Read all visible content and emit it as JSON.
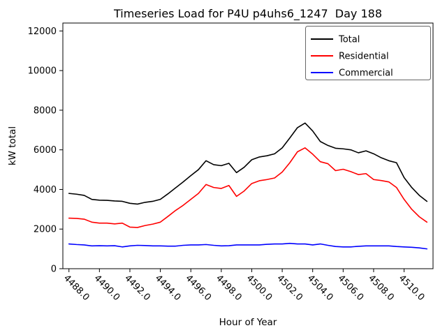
{
  "title": "Timeseries Load for P4U p4uhs6_1247  Day 188",
  "axes": {
    "xlabel": "Hour of Year",
    "ylabel": "kW total"
  },
  "legend": {
    "position": "upper right",
    "items": [
      {
        "label": "Total",
        "color": "#000000"
      },
      {
        "label": "Residential",
        "color": "#ff0000"
      },
      {
        "label": "Commercial",
        "color": "#0000ff"
      }
    ]
  },
  "chart_data": {
    "type": "line",
    "title": "Timeseries Load for P4U p4uhs6_1247  Day 188",
    "xlabel": "Hour of Year",
    "ylabel": "kW total",
    "xlim": [
      4487.6,
      4511.9
    ],
    "ylim": [
      0,
      12400
    ],
    "grid": false,
    "legend_position": "upper right",
    "xticks": [
      4488,
      4490,
      4492,
      4494,
      4496,
      4498,
      4500,
      4502,
      4504,
      4506,
      4508,
      4510
    ],
    "xtick_labels": [
      "4488.0",
      "4490.0",
      "4492.0",
      "4494.0",
      "4496.0",
      "4498.0",
      "4500.0",
      "4502.0",
      "4504.0",
      "4506.0",
      "4508.0",
      "4510.0"
    ],
    "yticks": [
      0,
      2000,
      4000,
      6000,
      8000,
      10000,
      12000
    ],
    "ytick_labels": [
      "0",
      "2000",
      "4000",
      "6000",
      "8000",
      "10000",
      "12000"
    ],
    "x": [
      4488,
      4488.5,
      4489,
      4489.5,
      4490,
      4490.5,
      4491,
      4491.5,
      4492,
      4492.5,
      4493,
      4493.5,
      4494,
      4494.5,
      4495,
      4495.5,
      4496,
      4496.5,
      4497,
      4497.5,
      4498,
      4498.5,
      4499,
      4499.5,
      4500,
      4500.5,
      4501,
      4501.5,
      4502,
      4502.5,
      4503,
      4503.5,
      4504,
      4504.5,
      4505,
      4505.5,
      4506,
      4506.5,
      4507,
      4507.5,
      4508,
      4508.5,
      4509,
      4509.5,
      4510,
      4510.5,
      4511,
      4511.5
    ],
    "series": [
      {
        "name": "Total",
        "color": "#000000",
        "values": [
          3800,
          3760,
          3700,
          3500,
          3460,
          3450,
          3420,
          3400,
          3300,
          3260,
          3350,
          3400,
          3500,
          3780,
          4080,
          4380,
          4700,
          5000,
          5450,
          5250,
          5200,
          5320,
          4850,
          5120,
          5500,
          5640,
          5700,
          5800,
          6100,
          6600,
          7120,
          7350,
          6950,
          6420,
          6220,
          6080,
          6050,
          6000,
          5850,
          5950,
          5800,
          5600,
          5450,
          5350,
          4600,
          4100,
          3700,
          3400
        ]
      },
      {
        "name": "Residential",
        "color": "#ff0000",
        "values": [
          2550,
          2540,
          2500,
          2350,
          2300,
          2300,
          2260,
          2300,
          2100,
          2080,
          2180,
          2250,
          2350,
          2640,
          2940,
          3200,
          3500,
          3800,
          4250,
          4100,
          4050,
          4200,
          3650,
          3920,
          4300,
          4440,
          4500,
          4580,
          4880,
          5350,
          5900,
          6100,
          5780,
          5400,
          5300,
          4950,
          5020,
          4900,
          4750,
          4800,
          4500,
          4450,
          4380,
          4100,
          3500,
          3000,
          2620,
          2350
        ]
      },
      {
        "name": "Commercial",
        "color": "#0000ff",
        "values": [
          1250,
          1220,
          1200,
          1150,
          1160,
          1150,
          1160,
          1100,
          1150,
          1180,
          1170,
          1150,
          1150,
          1140,
          1140,
          1180,
          1200,
          1200,
          1220,
          1180,
          1150,
          1160,
          1200,
          1200,
          1200,
          1200,
          1230,
          1250,
          1250,
          1280,
          1250,
          1250,
          1200,
          1250,
          1180,
          1120,
          1100,
          1100,
          1130,
          1150,
          1150,
          1150,
          1150,
          1120,
          1100,
          1080,
          1050,
          1000
        ]
      }
    ]
  }
}
